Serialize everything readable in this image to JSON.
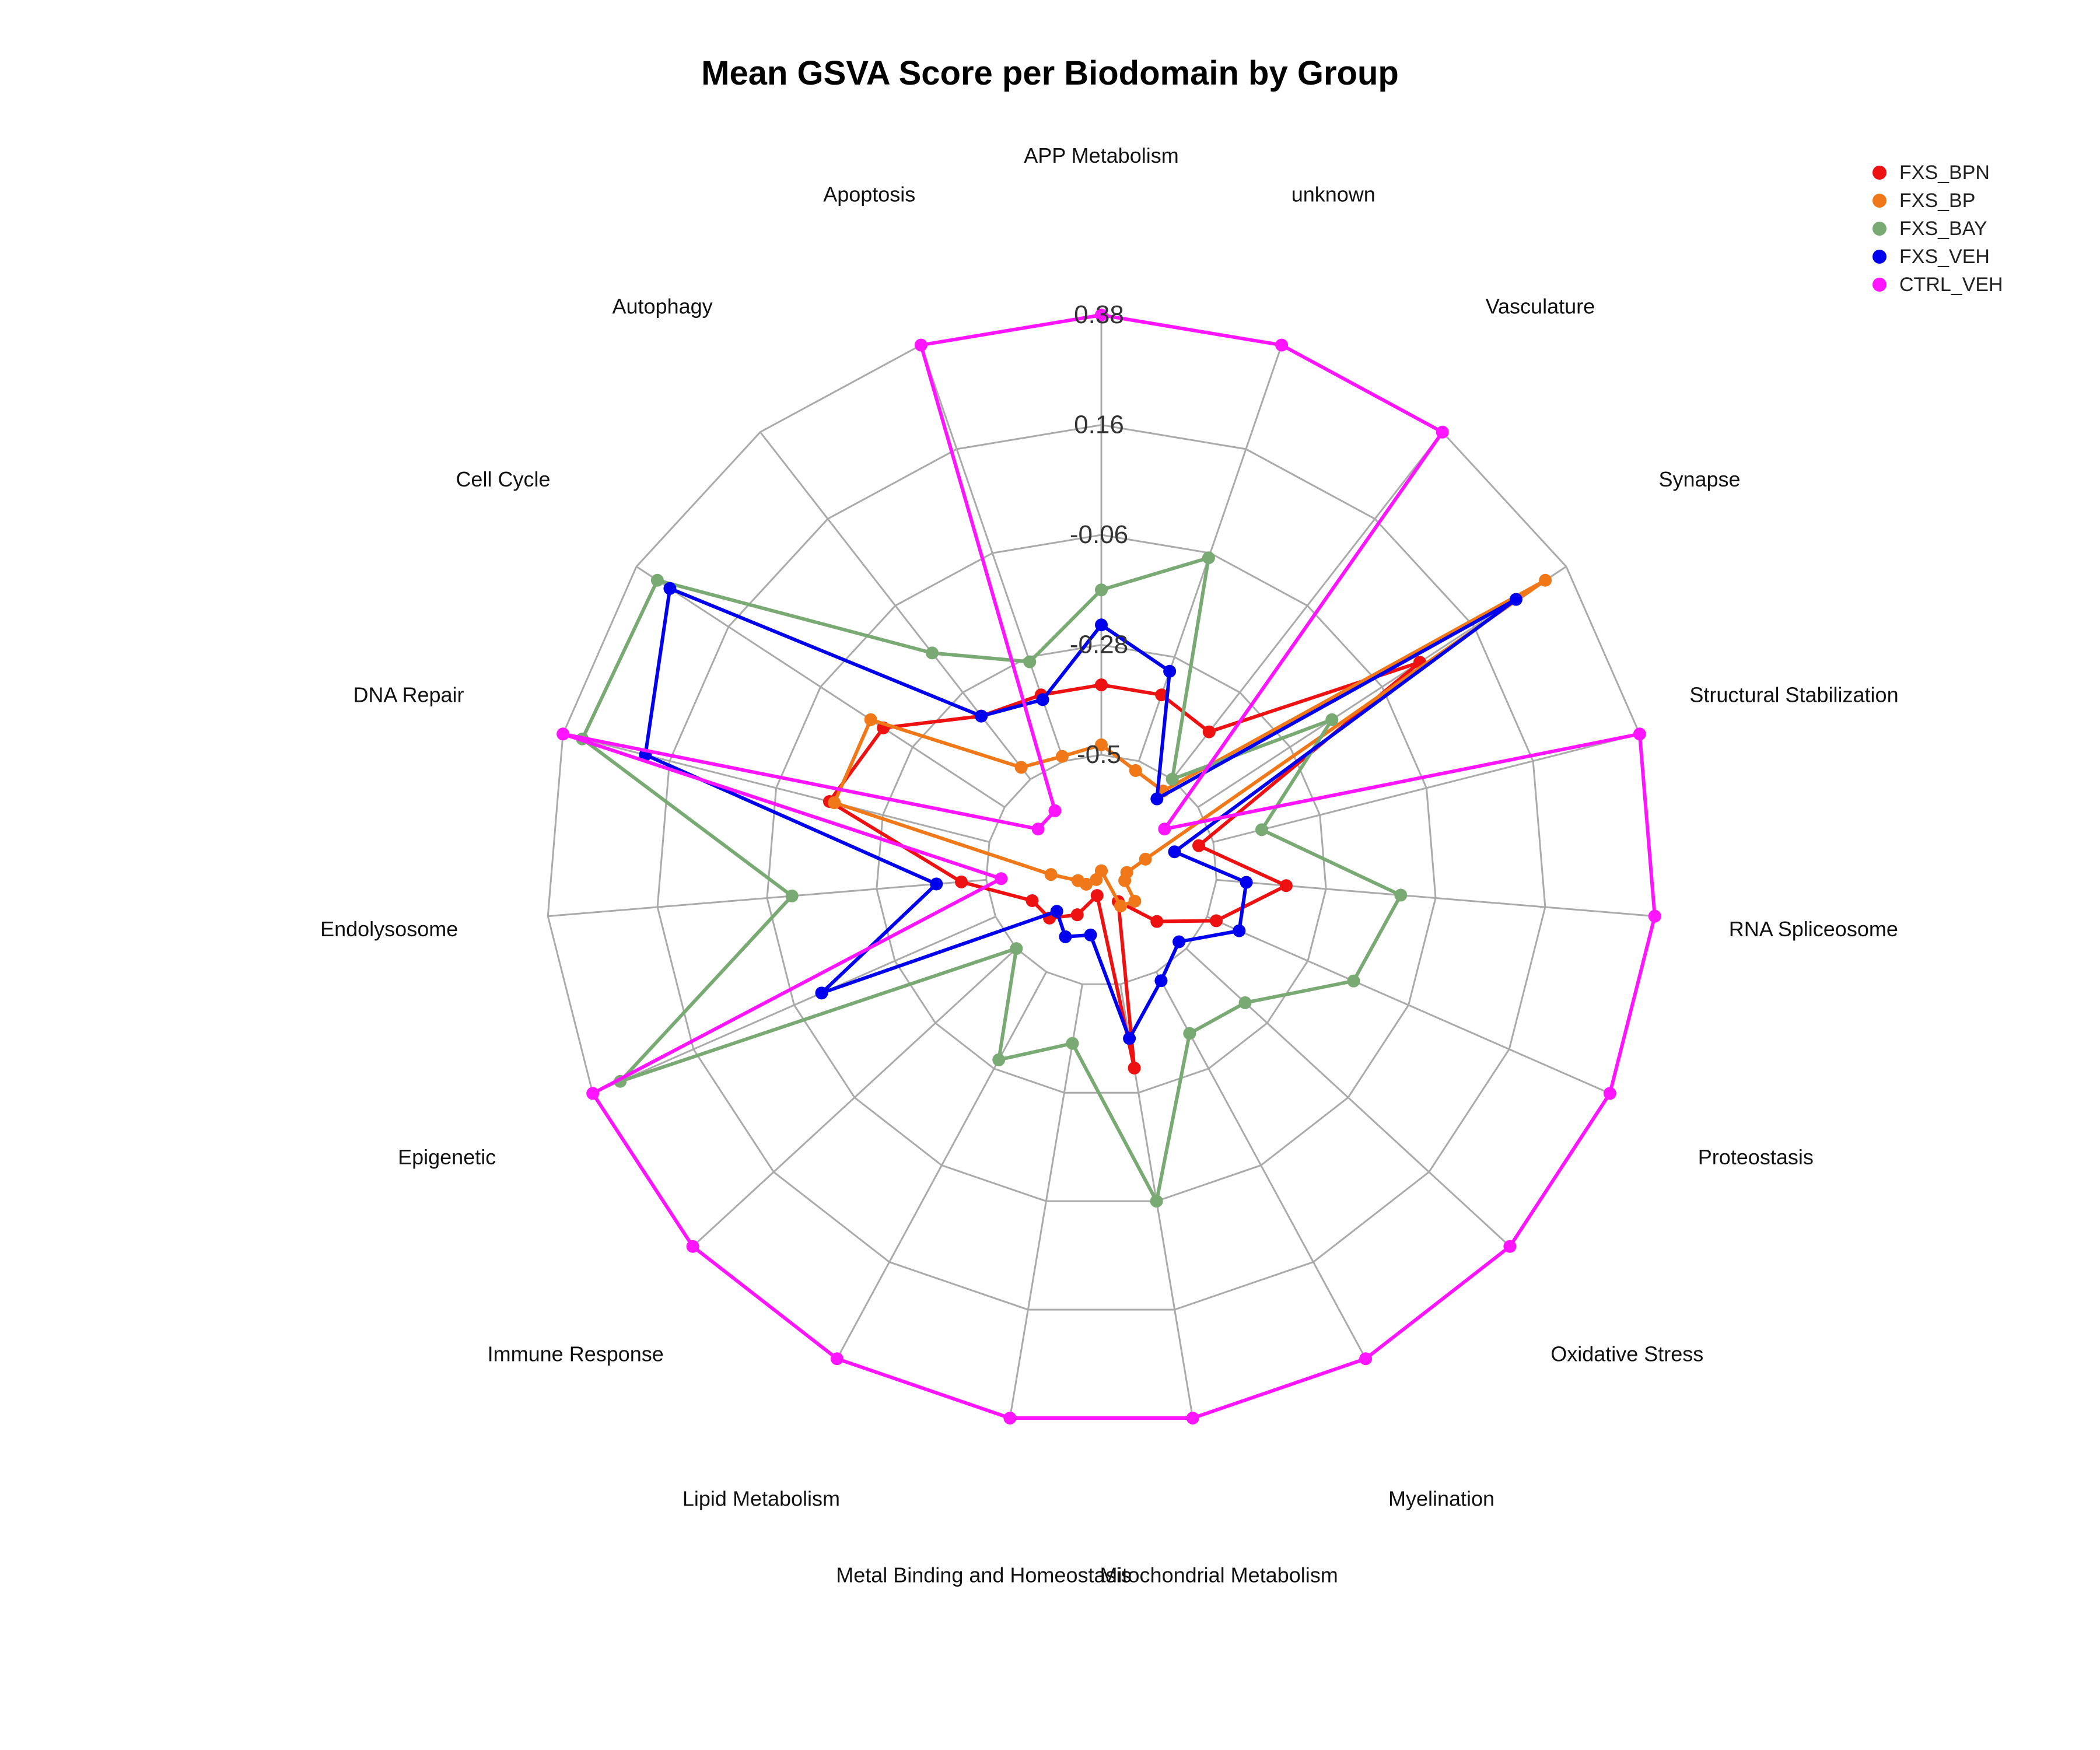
{
  "chart_data": {
    "type": "radar",
    "title": "Mean GSVA Score per Biodomain by Group",
    "axis_ticks": [
      "0.38",
      "0.16",
      "-0.06",
      "-0.28",
      "-0.5"
    ],
    "range": [
      -0.5,
      0.38
    ],
    "grid_levels": [
      -0.5,
      -0.28,
      -0.06,
      0.16,
      0.38
    ],
    "categories": [
      "APP Metabolism",
      "unknown",
      "Vasculature",
      "Synapse",
      "Structural Stabilization",
      "RNA Spliceosome",
      "Proteostasis",
      "Oxidative Stress",
      "Myelination",
      "Mitochondrial Metabolism",
      "Metal Binding and Homeostasis",
      "Lipid Metabolism",
      "Immune Response",
      "Epigenetic",
      "Endolysosome",
      "DNA Repair",
      "Cell Cycle",
      "Autophagy",
      "Apoptosis"
    ],
    "legend_position": "top-right",
    "series": [
      {
        "name": "FXS_BPN",
        "color": "#ee1111",
        "values": [
          -0.36,
          -0.36,
          -0.38,
          0.03,
          -0.53,
          -0.36,
          -0.48,
          -0.58,
          -0.66,
          -0.33,
          -0.68,
          -0.63,
          -0.59,
          -0.58,
          -0.45,
          -0.17,
          -0.21,
          -0.34,
          -0.36
        ]
      },
      {
        "name": "FXS_BP",
        "color": "#f07818",
        "values": [
          -0.48,
          -0.52,
          -0.53,
          0.33,
          -0.64,
          -0.68,
          -0.68,
          -0.64,
          -0.65,
          -0.73,
          -0.73,
          -0.71,
          -0.69,
          -0.68,
          -0.63,
          -0.18,
          -0.18,
          -0.47,
          -0.49
        ]
      },
      {
        "name": "FXS_BAY",
        "color": "#7aaa74",
        "values": [
          -0.17,
          -0.07,
          -0.5,
          -0.18,
          -0.4,
          -0.13,
          -0.18,
          -0.34,
          -0.36,
          -0.06,
          -0.38,
          -0.3,
          -0.5,
          0.32,
          -0.11,
          0.34,
          0.33,
          -0.18,
          -0.29
        ]
      },
      {
        "name": "FXS_VEH",
        "color": "#0000ee",
        "values": [
          -0.24,
          -0.31,
          -0.55,
          0.26,
          -0.58,
          -0.44,
          -0.43,
          -0.52,
          -0.48,
          -0.39,
          -0.6,
          -0.58,
          -0.61,
          -0.12,
          -0.4,
          0.21,
          0.3,
          -0.34,
          -0.37
        ]
      },
      {
        "name": "CTRL_VEH",
        "color": "#ff14ff",
        "values": [
          0.38,
          0.38,
          0.38,
          -0.58,
          0.38,
          0.38,
          0.38,
          0.38,
          0.38,
          0.38,
          0.38,
          0.38,
          0.38,
          0.38,
          -0.53,
          0.38,
          -0.58,
          -0.58,
          0.38
        ]
      }
    ]
  }
}
